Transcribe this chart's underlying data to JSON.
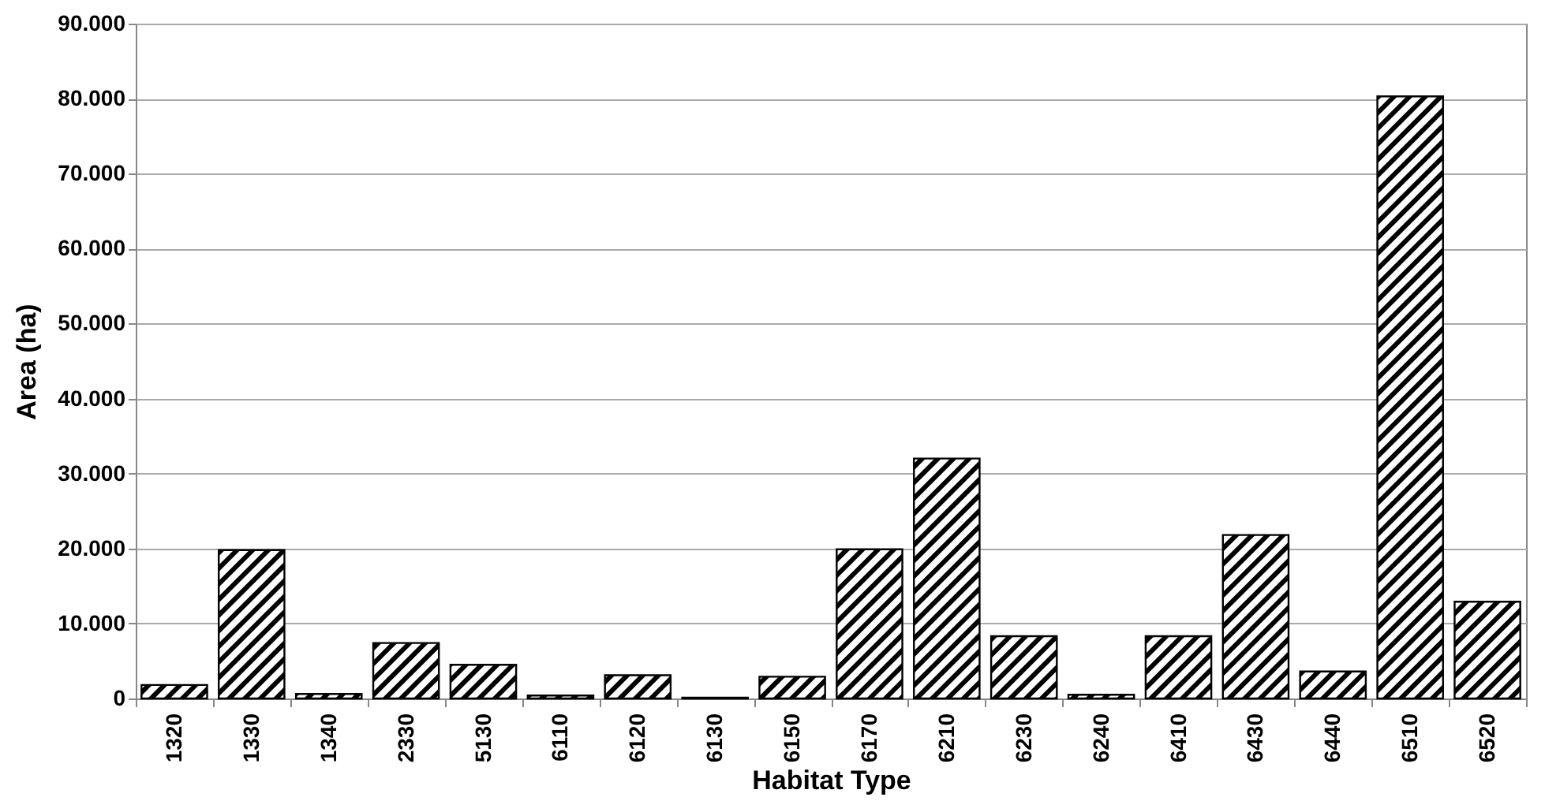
{
  "chart_data": {
    "type": "bar",
    "xlabel": "Habitat Type",
    "ylabel": "Area (ha)",
    "categories": [
      "1320",
      "1330",
      "1340",
      "2330",
      "5130",
      "6110",
      "6120",
      "6130",
      "6150",
      "6170",
      "6210",
      "6230",
      "6240",
      "6410",
      "6430",
      "6440",
      "6510",
      "6520"
    ],
    "values": [
      1800,
      19800,
      600,
      7400,
      4500,
      400,
      3100,
      100,
      2900,
      19900,
      32000,
      8300,
      500,
      8300,
      21800,
      3600,
      80300,
      12900
    ],
    "color": "#000000",
    "ylim": [
      0,
      90000
    ],
    "yticks": [
      {
        "value": 0,
        "label": "0"
      },
      {
        "value": 10000,
        "label": "10.000"
      },
      {
        "value": 20000,
        "label": "20.000"
      },
      {
        "value": 30000,
        "label": "30.000"
      },
      {
        "value": 40000,
        "label": "40.000"
      },
      {
        "value": 50000,
        "label": "50.000"
      },
      {
        "value": 60000,
        "label": "60.000"
      },
      {
        "value": 70000,
        "label": "70.000"
      },
      {
        "value": 80000,
        "label": "80.000"
      },
      {
        "value": 90000,
        "label": "90.000"
      }
    ],
    "grid": "y"
  }
}
